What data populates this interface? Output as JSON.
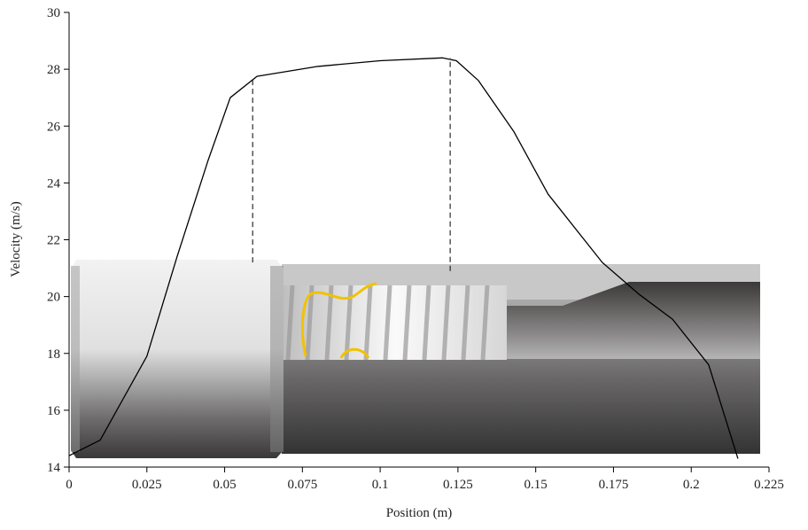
{
  "chart_data": {
    "type": "line",
    "x_label": "Position (m)",
    "y_label": "Velocity (m/s)",
    "x": [
      0,
      0.01,
      0.025,
      0.0347,
      0.0447,
      0.0518,
      0.0604,
      0.08,
      0.1,
      0.12,
      0.1245,
      0.1316,
      0.143,
      0.154,
      0.1714,
      0.183,
      0.194,
      0.2056,
      0.215
    ],
    "values": [
      14.4,
      14.95,
      17.9,
      21.4,
      24.8,
      27.0,
      27.75,
      28.1,
      28.3,
      28.4,
      28.3,
      27.6,
      25.8,
      23.6,
      21.2,
      20.1,
      19.2,
      17.6,
      14.3
    ],
    "color": "#000000",
    "dashed_lines": [
      {
        "x": 0.059,
        "y": [
          21.2,
          27.75
        ]
      },
      {
        "x": 0.1225,
        "y": [
          20.9,
          28.4
        ]
      }
    ],
    "xlim": [
      0,
      0.225
    ],
    "ylim": [
      14,
      30
    ],
    "xticks": [
      0,
      0.025,
      0.05,
      0.075,
      0.1,
      0.125,
      0.15,
      0.175,
      0.2,
      0.225
    ],
    "yticks": [
      14,
      16,
      18,
      20,
      22,
      24,
      26,
      28,
      30
    ]
  }
}
